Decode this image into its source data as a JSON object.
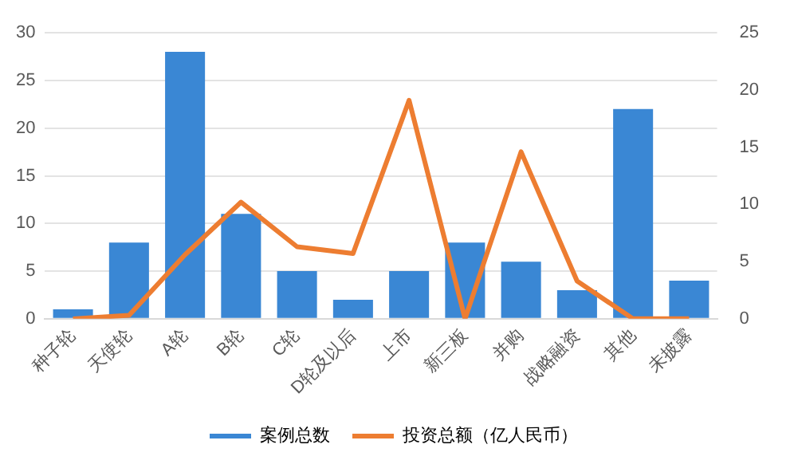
{
  "chart_data": {
    "type": "bar",
    "categories": [
      "种子轮",
      "天使轮",
      "A轮",
      "B轮",
      "C轮",
      "D轮及以后",
      "上市",
      "新三板",
      "并购",
      "战略融资",
      "其他",
      "未披露"
    ],
    "series": [
      {
        "name": "案例总数",
        "color": "#3a87d4",
        "values": [
          1,
          8,
          28,
          11,
          5,
          2,
          5,
          8,
          6,
          3,
          22,
          4
        ]
      },
      {
        "name": "投资总额（亿人民币）",
        "type": "line",
        "axis": "y2",
        "color": "#ed7d31",
        "values": [
          0,
          0.3,
          5.6,
          10.2,
          6.3,
          5.7,
          19.1,
          0,
          14.6,
          3.3,
          0,
          0
        ]
      }
    ],
    "ylim": [
      0,
      30
    ],
    "yticks": [
      0,
      5,
      10,
      15,
      20,
      25,
      30
    ],
    "y2lim": [
      0,
      25
    ],
    "y2ticks": [
      0,
      5,
      10,
      15,
      20,
      25
    ],
    "grid": "y",
    "legend": "bottom",
    "marker": "none"
  }
}
